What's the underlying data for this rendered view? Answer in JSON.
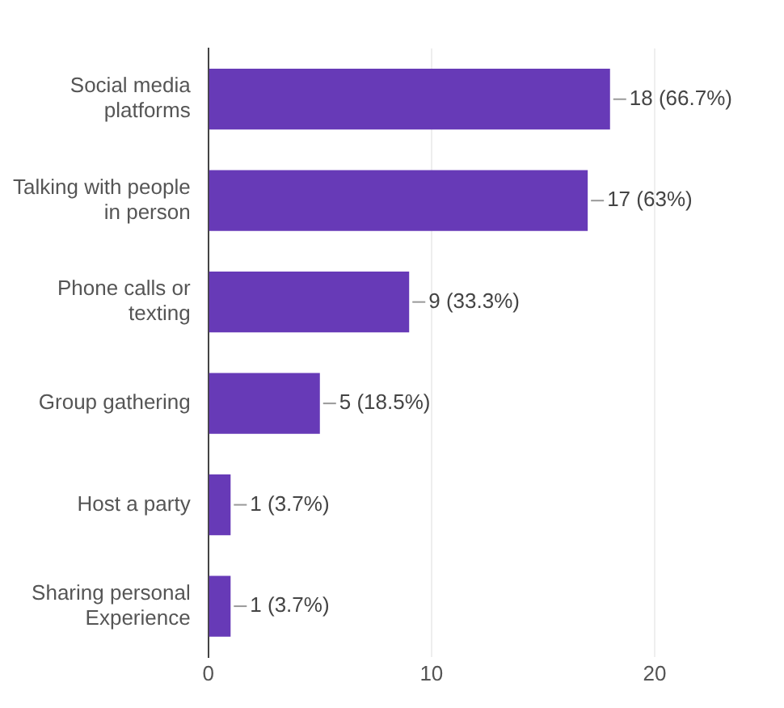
{
  "chart_data": {
    "type": "bar",
    "orientation": "horizontal",
    "categories": [
      "Social media platforms",
      "Talking with people in person",
      "Phone calls or texting",
      "Group gathering",
      "Host a party",
      "Sharing personal Experience"
    ],
    "values": [
      18,
      17,
      9,
      5,
      1,
      1
    ],
    "value_labels": [
      "18 (66.7%)",
      "17 (63%)",
      "9 (33.3%)",
      "5 (18.5%)",
      "1 (3.7%)",
      "1 (3.7%)"
    ],
    "color": "#673ab7",
    "xlim": [
      0,
      20
    ],
    "xticks": [
      0,
      10,
      20
    ],
    "grid": "x",
    "legend": false
  }
}
